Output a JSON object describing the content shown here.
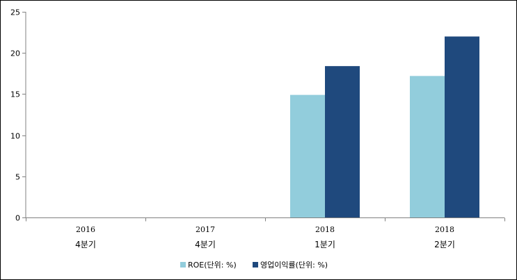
{
  "chart_data": {
    "type": "bar",
    "title": "",
    "xlabel": "",
    "ylabel": "",
    "ylim": [
      0,
      25
    ],
    "yticks": [
      0,
      5,
      10,
      15,
      20,
      25
    ],
    "grid": false,
    "legend_position": "bottom",
    "categories": [
      {
        "line1": "2016",
        "line2": "4분기"
      },
      {
        "line1": "2017",
        "line2": "4분기"
      },
      {
        "line1": "2018",
        "line2": "1분기"
      },
      {
        "line1": "2018",
        "line2": "2분기"
      }
    ],
    "series": [
      {
        "name": "ROE(단위: %)",
        "color": "#92CDDC",
        "values": [
          null,
          null,
          14.9,
          17.2
        ]
      },
      {
        "name": "영업이익률(단위: %)",
        "color": "#1F497D",
        "values": [
          null,
          null,
          18.4,
          22.0
        ]
      }
    ]
  }
}
